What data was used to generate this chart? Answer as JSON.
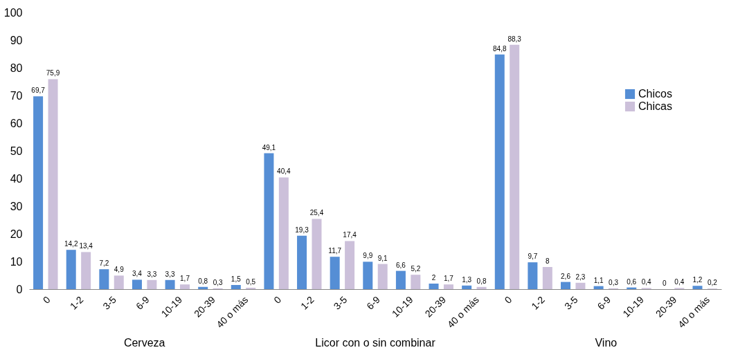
{
  "chart_data": {
    "type": "bar",
    "categories": [
      "0",
      "1-2",
      "3-5",
      "6-9",
      "10-19",
      "20-39",
      "40 o más",
      "0",
      "1-2",
      "3-5",
      "6-9",
      "10-19",
      "20-39",
      "40 o más",
      "0",
      "1-2",
      "3-5",
      "6-9",
      "10-19",
      "20-39",
      "40 o más"
    ],
    "series": [
      {
        "name": "Chicos",
        "color": "#558ed5",
        "values": [
          69.7,
          14.2,
          7.2,
          3.4,
          3.3,
          0.8,
          1.5,
          49.1,
          19.3,
          11.7,
          9.9,
          6.6,
          2,
          1.3,
          84.8,
          9.7,
          2.6,
          1.1,
          0.6,
          0,
          1.2
        ],
        "value_labels": [
          "69,7",
          "14,2",
          "7,2",
          "3,4",
          "3,3",
          "0,8",
          "1,5",
          "49,1",
          "19,3",
          "11,7",
          "9,9",
          "6,6",
          "2",
          "1,3",
          "84,8",
          "9,7",
          "2,6",
          "1,1",
          "0,6",
          "0",
          "1,2"
        ]
      },
      {
        "name": "Chicas",
        "color": "#ccc0da",
        "values": [
          75.9,
          13.4,
          4.9,
          3.3,
          1.7,
          0.3,
          0.5,
          40.4,
          25.4,
          17.4,
          9.1,
          5.2,
          1.7,
          0.8,
          88.3,
          8,
          2.3,
          0.3,
          0.4,
          0.4,
          0.2
        ],
        "value_labels": [
          "75,9",
          "13,4",
          "4,9",
          "3,3",
          "1,7",
          "0,3",
          "0,5",
          "40,4",
          "25,4",
          "17,4",
          "9,1",
          "5,2",
          "1,7",
          "0,8",
          "88,3",
          "8",
          "2,3",
          "0,3",
          "0,4",
          "0,4",
          "0,2"
        ]
      }
    ],
    "annotations": [
      "Cerveza",
      "Licor con o sin combinar",
      "Vino"
    ],
    "ylim": [
      0,
      100
    ],
    "yticks": [
      0,
      10,
      20,
      30,
      40,
      50,
      60,
      70,
      80,
      90,
      100
    ],
    "grid": false,
    "legend": "right"
  }
}
